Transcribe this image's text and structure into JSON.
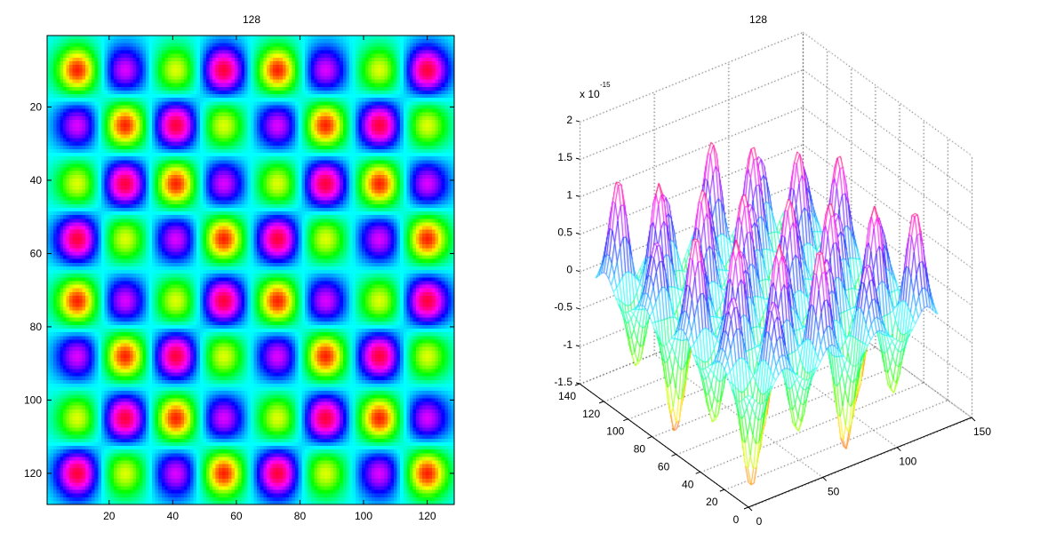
{
  "chart_data": [
    {
      "type": "heatmap",
      "title": "128",
      "xlim": [
        0.5,
        128.5
      ],
      "ylim": [
        0.5,
        128.5
      ],
      "y_reversed": true,
      "xticks": [
        20,
        40,
        60,
        80,
        100,
        120
      ],
      "yticks": [
        20,
        40,
        60,
        80,
        100,
        120
      ],
      "xtick_labels": [
        "20",
        "40",
        "60",
        "80",
        "100",
        "120"
      ],
      "ytick_labels": [
        "20",
        "40",
        "60",
        "80",
        "100",
        "120"
      ],
      "colormap": "hsv",
      "clim": [
        -1.5e-15,
        1.5e-15
      ],
      "grid": false,
      "blob_centers_x": [
        10,
        25,
        41,
        56,
        73,
        88,
        105,
        120
      ],
      "blob_centers_y": [
        10,
        25,
        41,
        56,
        73,
        88,
        105,
        120
      ],
      "blob_values_e15": [
        [
          -1.45,
          0.95,
          -0.95,
          1.4,
          -1.45,
          0.95,
          -0.95,
          1.4
        ],
        [
          0.95,
          -1.45,
          1.4,
          -0.95,
          0.95,
          -1.45,
          1.4,
          -0.95
        ],
        [
          -0.95,
          1.4,
          -1.45,
          0.95,
          -0.95,
          1.4,
          -1.45,
          0.95
        ],
        [
          1.4,
          -0.95,
          0.95,
          -1.45,
          1.4,
          -0.95,
          0.95,
          -1.45
        ],
        [
          -1.45,
          0.95,
          -0.95,
          1.4,
          -1.45,
          0.95,
          -0.95,
          1.4
        ],
        [
          0.95,
          -1.45,
          1.4,
          -0.95,
          0.95,
          -1.45,
          1.4,
          -0.95
        ],
        [
          -0.95,
          1.4,
          -1.45,
          0.95,
          -0.95,
          1.4,
          -1.45,
          0.95
        ],
        [
          1.4,
          -0.95,
          0.95,
          -1.45,
          1.4,
          -0.95,
          0.95,
          -1.45
        ]
      ]
    },
    {
      "type": "mesh",
      "title": "128",
      "xlim": [
        0,
        150
      ],
      "ylim": [
        0,
        140
      ],
      "zlim": [
        -1.5,
        2
      ],
      "xticks": [
        0,
        50,
        100,
        150
      ],
      "yticks": [
        0,
        20,
        40,
        60,
        80,
        100,
        120,
        140
      ],
      "zticks": [
        -1.5,
        -1,
        -0.5,
        0,
        0.5,
        1,
        1.5,
        2
      ],
      "xtick_labels": [
        "0",
        "50",
        "100",
        "150"
      ],
      "ytick_labels": [
        "0",
        "20",
        "40",
        "60",
        "80",
        "100",
        "120",
        "140"
      ],
      "ztick_labels": [
        "-1.5",
        "-1",
        "-0.5",
        "0",
        "0.5",
        "1",
        "1.5",
        "2"
      ],
      "z_multiplier_base": "x 10",
      "z_multiplier_exp": "-15",
      "colormap": "hsv",
      "grid": true,
      "grid_style": "dotted",
      "surface_source": "same data as heatmap"
    }
  ]
}
